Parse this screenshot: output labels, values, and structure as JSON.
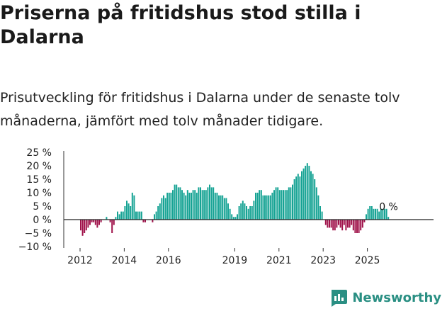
{
  "header": {
    "title": "Priserna på fritidshus stod stilla i Dalarna",
    "subtitle": "Prisutveckling för fritidshus i Dalarna under de senaste tolv månaderna, jämfört med tolv månader tidigare."
  },
  "brand": {
    "name": "Newsworthy",
    "icon": "newsworthy-logo-icon",
    "color": "#2a8f83"
  },
  "chart_data": {
    "type": "bar",
    "x_start": "2012-01",
    "x_ticks": [
      "2012",
      "2014",
      "2016",
      "2019",
      "2021",
      "2023",
      "2025"
    ],
    "y_ticks": [
      "25 %",
      "20 %",
      "15 %",
      "10 %",
      "5 %",
      "0 %",
      "−5 %",
      "−10 %"
    ],
    "ylim": [
      -10,
      25
    ],
    "positive_color": "#16a394",
    "negative_color": "#a0124a",
    "annotation": "0 %",
    "values": [
      -4,
      -6,
      -5,
      -4,
      -3,
      -2,
      -1,
      -1,
      -2,
      -3,
      -2,
      -1,
      0,
      0,
      1,
      0,
      -1,
      -5,
      -2,
      1,
      3,
      2,
      3,
      3,
      5,
      7,
      6,
      5,
      10,
      9,
      3,
      3,
      3,
      3,
      -1,
      -1,
      0,
      0,
      0,
      -1,
      2,
      3,
      5,
      6,
      8,
      9,
      8,
      10,
      10,
      10,
      11,
      13,
      13,
      12,
      12,
      11,
      10,
      9,
      11,
      10,
      10,
      11,
      11,
      10,
      12,
      12,
      11,
      11,
      11,
      12,
      13,
      12,
      12,
      10,
      10,
      9,
      9,
      9,
      8,
      8,
      6,
      4,
      2,
      1,
      1,
      2,
      5,
      6,
      7,
      6,
      5,
      4,
      5,
      5,
      7,
      10,
      10,
      11,
      11,
      9,
      9,
      9,
      9,
      9,
      10,
      11,
      12,
      12,
      11,
      11,
      11,
      11,
      11,
      12,
      12,
      13,
      15,
      16,
      17,
      16,
      18,
      19,
      20,
      21,
      20,
      18,
      17,
      15,
      12,
      9,
      5,
      3,
      0,
      -2,
      -3,
      -3,
      -3,
      -4,
      -4,
      -3,
      -2,
      -3,
      -4,
      -2,
      -4,
      -3,
      -3,
      -2,
      -4,
      -5,
      -5,
      -5,
      -4,
      -3,
      -1,
      2,
      4,
      5,
      5,
      4,
      4,
      4,
      3,
      4,
      4,
      4,
      4,
      1
    ]
  }
}
